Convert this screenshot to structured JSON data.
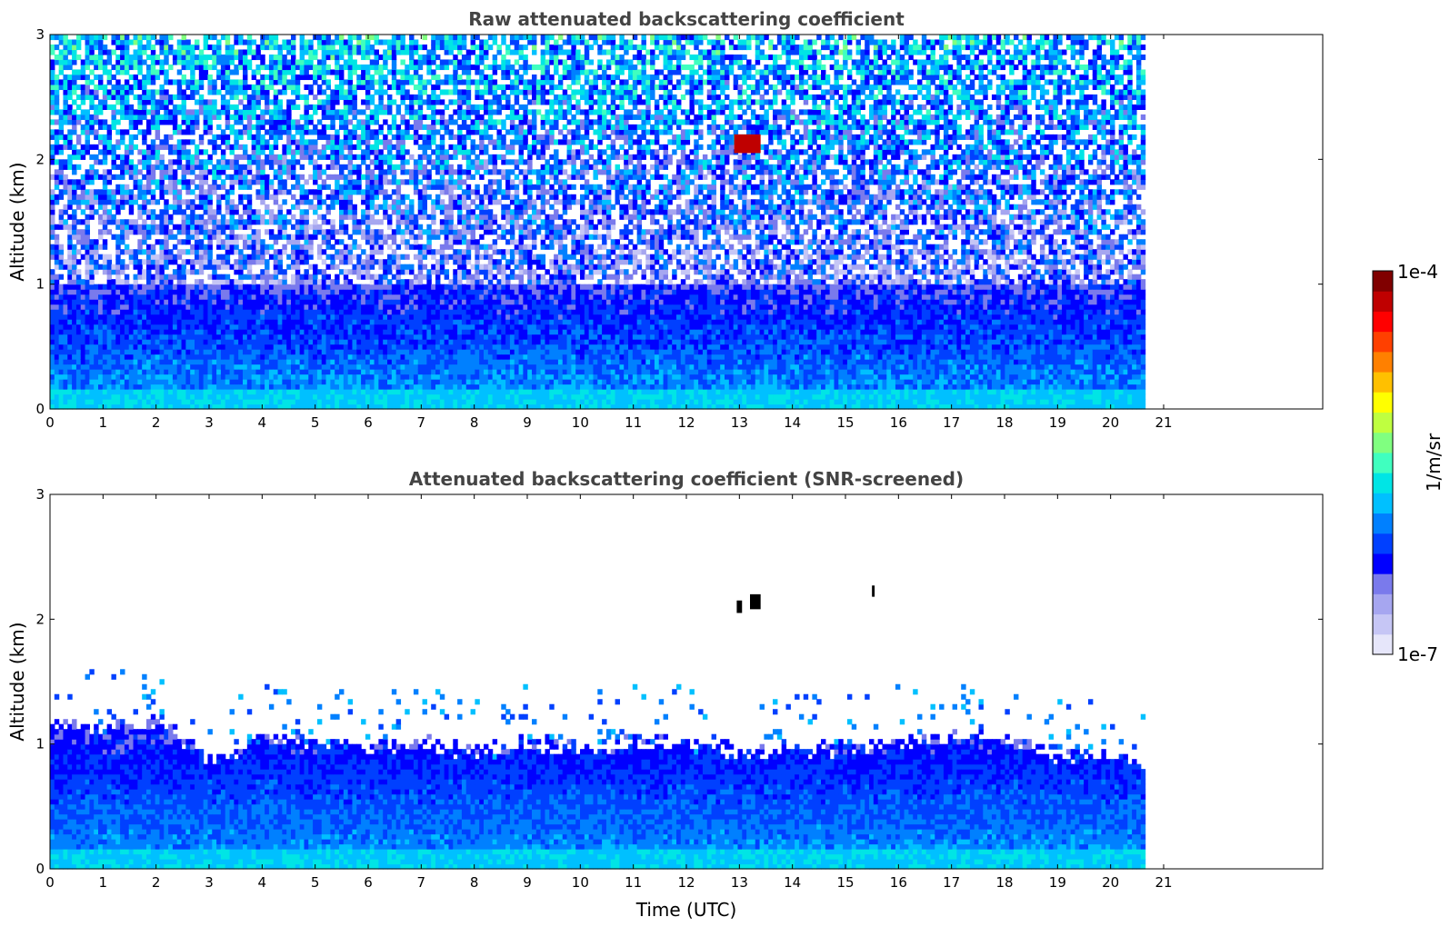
{
  "chart_data": [
    {
      "type": "heatmap",
      "title": "Raw attenuated backscattering coefficient",
      "xlabel": "",
      "ylabel": "Altitude (km)",
      "xlim": [
        0,
        24
      ],
      "ylim": [
        0,
        3
      ],
      "x_ticks": [
        "0",
        "1",
        "2",
        "3",
        "4",
        "5",
        "6",
        "7",
        "8",
        "9",
        "10",
        "11",
        "12",
        "13",
        "14",
        "15",
        "16",
        "17",
        "18",
        "19",
        "20",
        "21"
      ],
      "y_ticks": [
        "0",
        "1",
        "2",
        "3"
      ],
      "data_extent_hours": [
        0,
        20.65
      ],
      "description_values": {
        "near_surface_log10": -5.8,
        "mid_level_log10": -6.3,
        "upper_noise_log10": -5.9
      },
      "features": [
        {
          "x_start": 12.9,
          "x_end": 13.4,
          "y_start": 2.05,
          "y_end": 2.2,
          "log10_value": -4.2
        }
      ]
    },
    {
      "type": "heatmap",
      "title": "Attenuated backscattering coefficient (SNR-screened)",
      "xlabel": "Time (UTC)",
      "ylabel": "Altitude (km)",
      "xlim": [
        0,
        24
      ],
      "ylim": [
        0,
        3
      ],
      "x_ticks": [
        "0",
        "1",
        "2",
        "3",
        "4",
        "5",
        "6",
        "7",
        "8",
        "9",
        "10",
        "11",
        "12",
        "13",
        "14",
        "15",
        "16",
        "17",
        "18",
        "19",
        "20",
        "21"
      ],
      "y_ticks": [
        "0",
        "1",
        "2",
        "3"
      ],
      "data_extent_hours": [
        0,
        20.65
      ],
      "boundary_layer_top_km": [
        [
          0,
          1.15
        ],
        [
          1,
          1.1
        ],
        [
          2,
          1.15
        ],
        [
          3,
          0.85
        ],
        [
          4,
          1.05
        ],
        [
          5,
          1.0
        ],
        [
          6,
          0.95
        ],
        [
          7,
          1.0
        ],
        [
          8,
          0.9
        ],
        [
          9,
          1.0
        ],
        [
          10,
          0.95
        ],
        [
          11,
          1.0
        ],
        [
          12,
          1.0
        ],
        [
          13,
          0.9
        ],
        [
          14,
          0.95
        ],
        [
          15,
          0.95
        ],
        [
          16,
          1.0
        ],
        [
          17,
          1.05
        ],
        [
          18,
          1.0
        ],
        [
          19,
          0.9
        ],
        [
          20,
          0.85
        ],
        [
          20.65,
          0.8
        ]
      ],
      "features": [
        {
          "x_start": 13.2,
          "x_end": 13.4,
          "y_start": 2.08,
          "y_end": 2.2,
          "log10_value": -4.0
        },
        {
          "x_start": 12.95,
          "x_end": 13.05,
          "y_start": 2.05,
          "y_end": 2.15,
          "log10_value": -4.0
        },
        {
          "x_start": 15.5,
          "x_end": 15.55,
          "y_start": 2.18,
          "y_end": 2.27,
          "log10_value": -4.0
        }
      ]
    }
  ],
  "colorbar": {
    "label": "1/m/sr",
    "max_label": "1e-4",
    "min_label": "1e-7",
    "range_log10": [
      -7,
      -4
    ],
    "colormap": "jet",
    "colors": [
      "#e6e6fa",
      "#c6c6f5",
      "#a6a6f0",
      "#7a7aec",
      "#0000ff",
      "#0040ff",
      "#0080ff",
      "#00c0ff",
      "#00e5e5",
      "#40ffbf",
      "#80ff80",
      "#bfff40",
      "#ffff00",
      "#ffc000",
      "#ff8000",
      "#ff4000",
      "#ff0000",
      "#bf0000",
      "#800000"
    ]
  }
}
